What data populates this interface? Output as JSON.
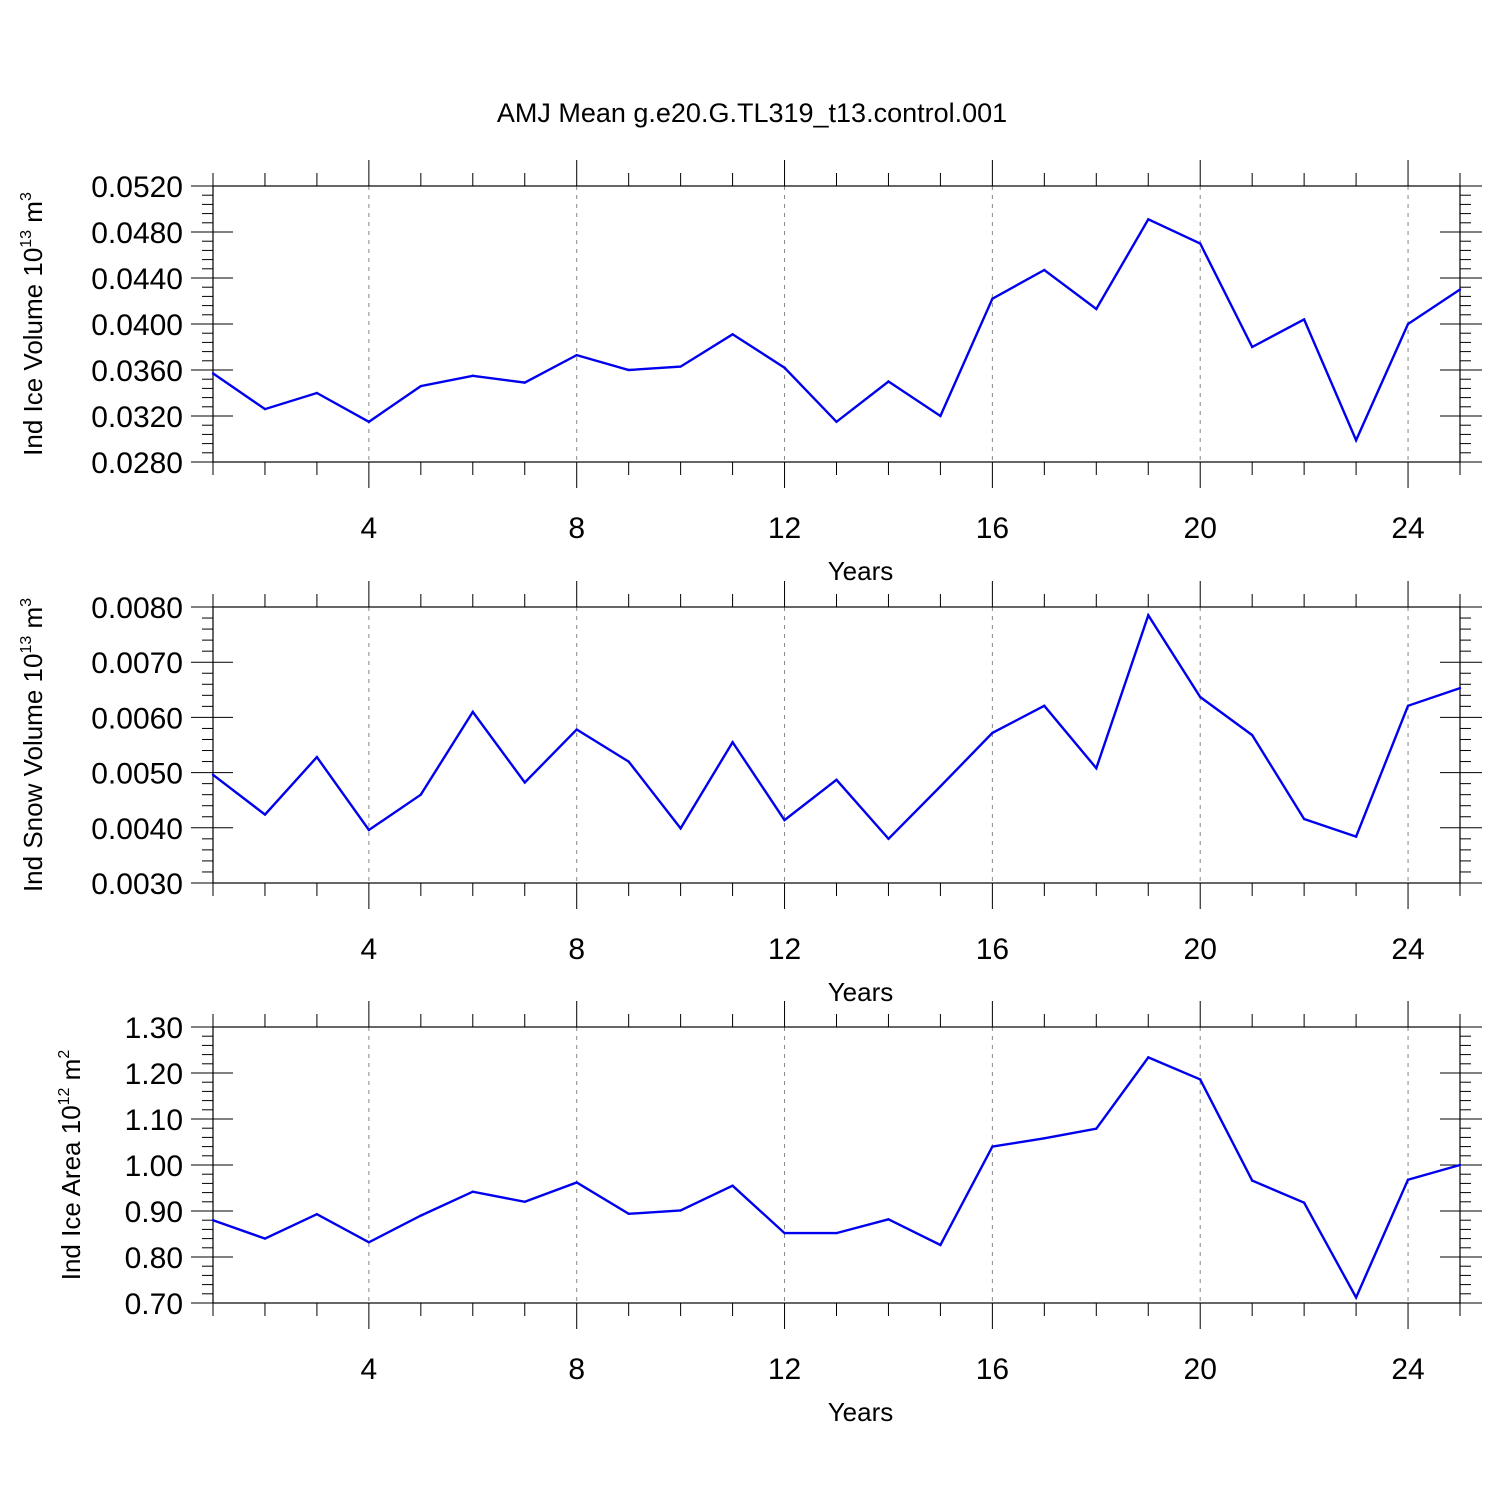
{
  "title": "AMJ Mean g.e20.G.TL319_t13.control.001",
  "colors": {
    "line": "#0000ee",
    "axis": "#000000",
    "grid": "#888888"
  },
  "chart_data": [
    {
      "type": "line",
      "ylabel": {
        "text": "Ind Ice Volume 10",
        "exp": "13",
        "unit": " m",
        "unit_exp": "3"
      },
      "xlabel": "Years",
      "xlim": [
        1,
        25
      ],
      "ylim": [
        0.028,
        0.052
      ],
      "yticks": [
        "0.0280",
        "0.0320",
        "0.0360",
        "0.0400",
        "0.0440",
        "0.0480",
        "0.0520"
      ],
      "xticks": [
        "4",
        "8",
        "12",
        "16",
        "20",
        "24"
      ],
      "grid": "vertical-dashed",
      "x": [
        1,
        2,
        3,
        4,
        5,
        6,
        7,
        8,
        9,
        10,
        11,
        12,
        13,
        14,
        15,
        16,
        17,
        18,
        19,
        20,
        21,
        22,
        23,
        24,
        25
      ],
      "values": [
        0.0357,
        0.0326,
        0.034,
        0.0315,
        0.0346,
        0.0355,
        0.0349,
        0.0373,
        0.036,
        0.0363,
        0.0391,
        0.0362,
        0.0315,
        0.035,
        0.032,
        0.0422,
        0.0447,
        0.0413,
        0.0491,
        0.047,
        0.038,
        0.0404,
        0.0299,
        0.04,
        0.043
      ]
    },
    {
      "type": "line",
      "ylabel": {
        "text": "Ind Snow Volume 10",
        "exp": "13",
        "unit": " m",
        "unit_exp": "3"
      },
      "xlabel": "Years",
      "xlim": [
        1,
        25
      ],
      "ylim": [
        0.003,
        0.008
      ],
      "yticks": [
        "0.0030",
        "0.0040",
        "0.0050",
        "0.0060",
        "0.0070",
        "0.0080"
      ],
      "xticks": [
        "4",
        "8",
        "12",
        "16",
        "20",
        "24"
      ],
      "grid": "vertical-dashed",
      "x": [
        1,
        2,
        3,
        4,
        5,
        6,
        7,
        8,
        9,
        10,
        11,
        12,
        13,
        14,
        15,
        16,
        17,
        18,
        19,
        20,
        21,
        22,
        23,
        24,
        25
      ],
      "values": [
        0.00496,
        0.00424,
        0.00528,
        0.00396,
        0.0046,
        0.0061,
        0.00482,
        0.00578,
        0.0052,
        0.00399,
        0.00555,
        0.00414,
        0.00487,
        0.0038,
        0.00475,
        0.00572,
        0.00621,
        0.00508,
        0.00785,
        0.00637,
        0.00568,
        0.00416,
        0.00384,
        0.00621,
        0.00653
      ]
    },
    {
      "type": "line",
      "ylabel": {
        "text": "Ind Ice Area 10",
        "exp": "12",
        "unit": " m",
        "unit_exp": "2"
      },
      "xlabel": "Years",
      "xlim": [
        1,
        25
      ],
      "ylim": [
        0.7,
        1.3
      ],
      "yticks": [
        "0.70",
        "0.80",
        "0.90",
        "1.00",
        "1.10",
        "1.20",
        "1.30"
      ],
      "xticks": [
        "4",
        "8",
        "12",
        "16",
        "20",
        "24"
      ],
      "grid": "vertical-dashed",
      "x": [
        1,
        2,
        3,
        4,
        5,
        6,
        7,
        8,
        9,
        10,
        11,
        12,
        13,
        14,
        15,
        16,
        17,
        18,
        19,
        20,
        21,
        22,
        23,
        24,
        25
      ],
      "values": [
        0.88,
        0.84,
        0.893,
        0.832,
        0.89,
        0.942,
        0.92,
        0.962,
        0.894,
        0.901,
        0.955,
        0.852,
        0.852,
        0.882,
        0.826,
        1.04,
        1.058,
        1.079,
        1.234,
        1.186,
        0.966,
        0.918,
        0.712,
        0.968,
        1.0
      ]
    }
  ]
}
